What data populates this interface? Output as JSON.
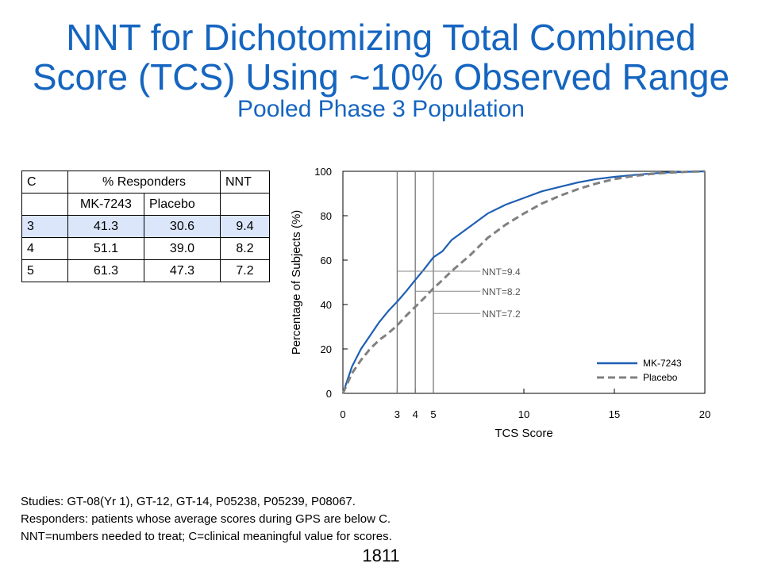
{
  "header": {
    "title_line1": "NNT for Dichotomizing Total Combined",
    "title_line2": "Score (TCS) Using ~10% Observed Range",
    "subtitle": "Pooled Phase 3 Population"
  },
  "table": {
    "headers": [
      "C",
      "% Responders",
      "NNT"
    ],
    "subheaders": [
      "MK-7243",
      "Placebo"
    ],
    "rows": [
      [
        "3",
        "41.3",
        "30.6",
        "9.4"
      ],
      [
        "4",
        "51.1",
        "39.0",
        "8.2"
      ],
      [
        "5",
        "61.3",
        "47.3",
        "7.2"
      ]
    ],
    "highlight_row": 0
  },
  "chart_data": {
    "type": "line",
    "xlabel": "TCS Score",
    "ylabel": "Percentage of Subjects (%)",
    "xlim": [
      0,
      20
    ],
    "ylim": [
      0,
      100
    ],
    "xticks": [
      0,
      3,
      4,
      5,
      10,
      15,
      20
    ],
    "yticks": [
      0,
      20,
      40,
      60,
      80,
      100
    ],
    "grid": false,
    "legend_position": "bottom-right",
    "series": [
      {
        "name": "MK-7243",
        "color": "#1f5fb4",
        "style": "solid",
        "x": [
          0,
          0.5,
          1,
          1.5,
          2,
          2.5,
          3,
          3.5,
          4,
          4.5,
          5,
          5.5,
          6,
          7,
          8,
          9,
          10,
          11,
          12,
          13,
          14,
          15,
          16,
          17,
          18,
          19,
          20
        ],
        "y": [
          0,
          12,
          20,
          26,
          32,
          37,
          41.3,
          46,
          51.1,
          56,
          61.3,
          64,
          69,
          75,
          81,
          85,
          88,
          91,
          93,
          95,
          96.5,
          97.5,
          98.3,
          99,
          99.5,
          99.8,
          100
        ]
      },
      {
        "name": "Placebo",
        "color": "#808080",
        "style": "dashed",
        "x": [
          0,
          0.5,
          1,
          1.5,
          2,
          2.5,
          3,
          3.5,
          4,
          4.5,
          5,
          5.5,
          6,
          7,
          8,
          9,
          10,
          11,
          12,
          13,
          14,
          15,
          16,
          17,
          18,
          19,
          20
        ],
        "y": [
          0,
          9,
          15,
          20,
          24,
          27,
          30.6,
          35,
          39,
          43,
          47.3,
          51,
          55,
          62,
          70,
          76,
          81,
          85.5,
          89,
          92,
          94.5,
          96.5,
          97.8,
          98.8,
          99.4,
          99.8,
          100
        ]
      }
    ],
    "vlines": [
      3,
      4,
      5
    ],
    "annotations": [
      {
        "label": "NNT=9.4",
        "x": 3,
        "y": 55
      },
      {
        "label": "NNT=8.2",
        "x": 4,
        "y": 46
      },
      {
        "label": "NNT=7.2",
        "x": 5,
        "y": 36
      }
    ]
  },
  "footnotes": [
    "Studies: GT-08(Yr 1), GT-12, GT-14, P05238, P05239, P08067.",
    "Responders: patients whose average scores during GPS are below C.",
    "NNT=numbers needed to treat;  C=clinical meaningful value for scores."
  ],
  "page_number": "1811"
}
